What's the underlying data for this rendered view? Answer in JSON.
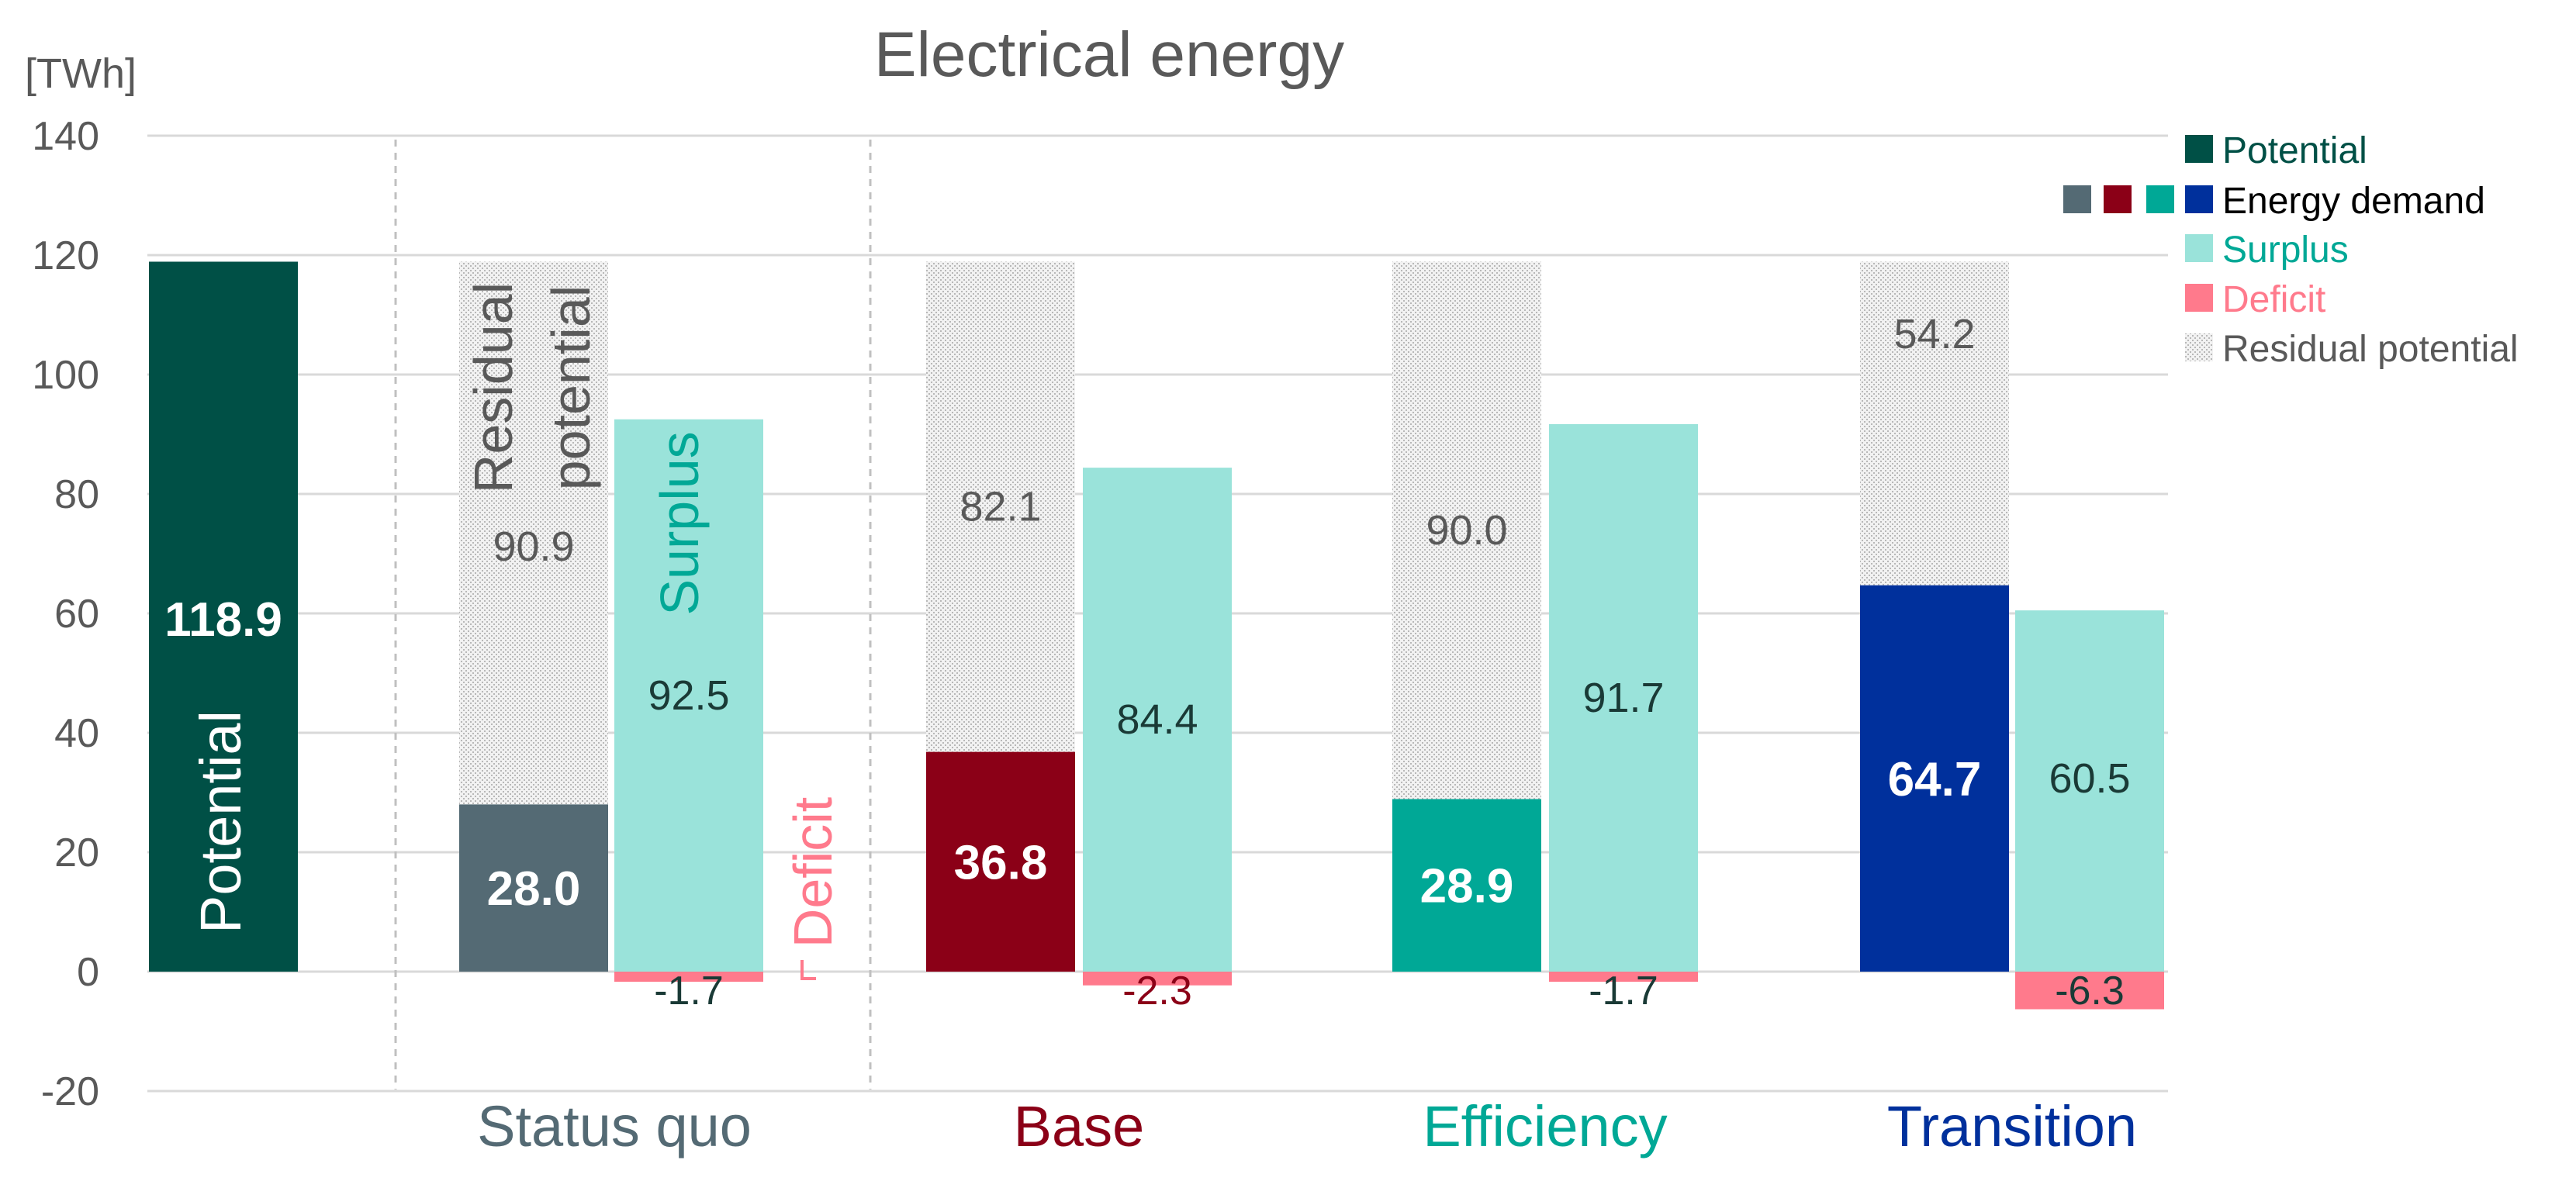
{
  "chart_data": {
    "type": "bar",
    "title": "Electrical energy",
    "ylabel": "[TWh]",
    "ylim": [
      -20,
      140
    ],
    "yticks": [
      -20,
      0,
      20,
      40,
      60,
      80,
      100,
      120,
      140
    ],
    "ytick_labels": [
      "-20",
      "0",
      "20",
      "40",
      "60",
      "80",
      "100",
      "120",
      "140"
    ],
    "grid": true,
    "legend_position": "top-right",
    "potential": {
      "value": 118.9,
      "label": "118.9",
      "bar_text": "Potential",
      "color": "#005046"
    },
    "scenarios": [
      {
        "name": "Status quo",
        "color": "#546A74",
        "demand": 28.0,
        "demand_label": "28.0",
        "residual": 90.9,
        "residual_label": "90.9",
        "surplus": 92.5,
        "surplus_label": "92.5",
        "deficit": -1.7,
        "deficit_label": "-1.7"
      },
      {
        "name": "Base",
        "color": "#8B0017",
        "demand": 36.8,
        "demand_label": "36.8",
        "residual": 82.1,
        "residual_label": "82.1",
        "surplus": 84.4,
        "surplus_label": "84.4",
        "deficit": -2.3,
        "deficit_label": "-2.3"
      },
      {
        "name": "Efficiency",
        "color": "#00A896",
        "demand": 28.9,
        "demand_label": "28.9",
        "residual": 90.0,
        "residual_label": "90.0",
        "surplus": 91.7,
        "surplus_label": "91.7",
        "deficit": -1.7,
        "deficit_label": "-1.7"
      },
      {
        "name": "Transition",
        "color": "#00309C",
        "demand": 64.7,
        "demand_label": "64.7",
        "residual": 54.2,
        "residual_label": "54.2",
        "surplus": 60.5,
        "surplus_label": "60.5",
        "deficit": -6.3,
        "deficit_label": "-6.3"
      }
    ],
    "annotations": {
      "residual_line1": "Residual",
      "residual_line2": "potential",
      "surplus": "Surplus",
      "deficit": "Deficit"
    },
    "legend": [
      {
        "key": "potential",
        "label": "Potential",
        "color": "#005046",
        "text_color": "#005046"
      },
      {
        "key": "demand",
        "label": "Energy demand",
        "colors": [
          "#546A74",
          "#8B0017",
          "#00A896",
          "#00309C"
        ],
        "text_color": "#000000"
      },
      {
        "key": "surplus",
        "label": "Surplus",
        "color": "#9AE3DA",
        "text_color": "#00A896"
      },
      {
        "key": "deficit",
        "label": "Deficit",
        "color": "#FF7A8C",
        "text_color": "#FF7A8C"
      },
      {
        "key": "residual",
        "label": "Residual potential",
        "color": "#E8E8E8",
        "text_color": "#595959"
      }
    ],
    "colors": {
      "surplus": "#9AE3DA",
      "surplus_text": "#00A896",
      "deficit": "#FF7A8C",
      "residual_text": "#595959",
      "axis_text": "#595959",
      "grid": "#D9D9D9",
      "title": "#595959",
      "value_dark": "#1a3a36"
    }
  }
}
